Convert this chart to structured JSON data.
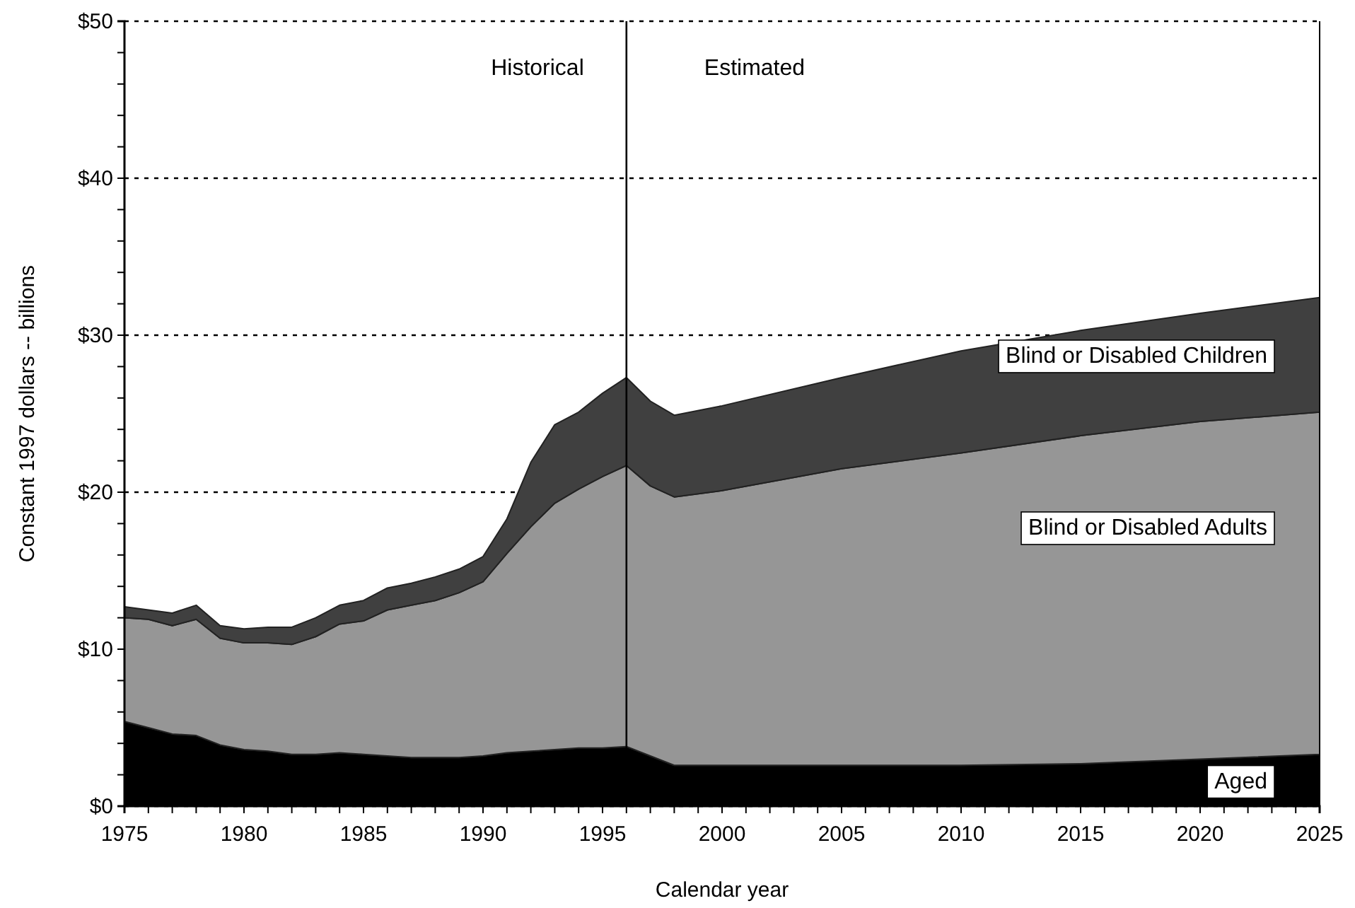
{
  "chart_data": {
    "type": "area",
    "stacked": true,
    "xlabel": "Calendar year",
    "ylabel": "Constant 1997 dollars -- billions",
    "x": [
      1975,
      1976,
      1977,
      1978,
      1979,
      1980,
      1981,
      1982,
      1983,
      1984,
      1985,
      1986,
      1987,
      1988,
      1989,
      1990,
      1991,
      1992,
      1993,
      1994,
      1995,
      1996,
      1997,
      1998,
      2000,
      2005,
      2010,
      2015,
      2020,
      2025
    ],
    "series": [
      {
        "name": "Aged",
        "color": "#000000",
        "values": [
          5.4,
          5.0,
          4.6,
          4.5,
          3.9,
          3.6,
          3.5,
          3.3,
          3.3,
          3.4,
          3.3,
          3.2,
          3.1,
          3.1,
          3.1,
          3.2,
          3.4,
          3.5,
          3.6,
          3.7,
          3.7,
          3.8,
          3.2,
          2.6,
          2.6,
          2.6,
          2.6,
          2.7,
          3.0,
          3.3
        ]
      },
      {
        "name": "Blind or Disabled Adults",
        "color": "#969696",
        "values": [
          6.6,
          6.9,
          6.9,
          7.4,
          6.8,
          6.8,
          6.9,
          7.0,
          7.5,
          8.2,
          8.5,
          9.3,
          9.7,
          10.0,
          10.5,
          11.1,
          12.7,
          14.3,
          15.7,
          16.5,
          17.3,
          17.9,
          17.2,
          17.1,
          17.5,
          18.9,
          19.9,
          20.9,
          21.5,
          21.8
        ]
      },
      {
        "name": "Blind or Disabled Children",
        "color": "#404040",
        "values": [
          0.7,
          0.6,
          0.8,
          0.9,
          0.8,
          0.9,
          1.0,
          1.1,
          1.2,
          1.2,
          1.3,
          1.4,
          1.4,
          1.5,
          1.5,
          1.6,
          2.2,
          4.1,
          5.0,
          4.9,
          5.3,
          5.6,
          5.4,
          5.2,
          5.4,
          5.8,
          6.5,
          6.7,
          6.9,
          7.3
        ]
      }
    ],
    "xlim": [
      1975,
      2025
    ],
    "xticks": [
      1975,
      {
        "value": 1976,
        "label": null
      },
      {
        "value": 1977,
        "label": null
      },
      {
        "value": 1978,
        "label": null
      },
      {
        "value": 1979,
        "label": null
      },
      1980,
      {
        "value": 1981,
        "label": null
      },
      {
        "value": 1982,
        "label": null
      },
      {
        "value": 1983,
        "label": null
      },
      {
        "value": 1984,
        "label": null
      },
      1985,
      {
        "value": 1986,
        "label": null
      },
      {
        "value": 1987,
        "label": null
      },
      {
        "value": 1988,
        "label": null
      },
      {
        "value": 1989,
        "label": null
      },
      1990,
      {
        "value": 1991,
        "label": null
      },
      {
        "value": 1992,
        "label": null
      },
      {
        "value": 1993,
        "label": null
      },
      {
        "value": 1994,
        "label": null
      },
      1995,
      {
        "value": 1996,
        "label": null
      },
      {
        "value": 1997,
        "label": null
      },
      {
        "value": 1998,
        "label": null
      },
      {
        "value": 1999,
        "label": null
      },
      2000,
      {
        "value": 2001,
        "label": null
      },
      {
        "value": 2002,
        "label": null
      },
      {
        "value": 2003,
        "label": null
      },
      {
        "value": 2004,
        "label": null
      },
      2005,
      {
        "value": 2006,
        "label": null
      },
      {
        "value": 2007,
        "label": null
      },
      {
        "value": 2008,
        "label": null
      },
      {
        "value": 2009,
        "label": null
      },
      2010,
      {
        "value": 2011,
        "label": null
      },
      {
        "value": 2012,
        "label": null
      },
      {
        "value": 2013,
        "label": null
      },
      {
        "value": 2014,
        "label": null
      },
      2015,
      {
        "value": 2016,
        "label": null
      },
      {
        "value": 2017,
        "label": null
      },
      {
        "value": 2018,
        "label": null
      },
      {
        "value": 2019,
        "label": null
      },
      2020,
      {
        "value": 2021,
        "label": null
      },
      {
        "value": 2022,
        "label": null
      },
      {
        "value": 2023,
        "label": null
      },
      {
        "value": 2024,
        "label": null
      },
      2025
    ],
    "ylim": [
      0,
      50
    ],
    "yticks": [
      {
        "value": 0,
        "label": "$0"
      },
      {
        "value": 2,
        "label": null
      },
      {
        "value": 4,
        "label": null
      },
      {
        "value": 6,
        "label": null
      },
      {
        "value": 8,
        "label": null
      },
      {
        "value": 10,
        "label": "$10"
      },
      {
        "value": 12,
        "label": null
      },
      {
        "value": 14,
        "label": null
      },
      {
        "value": 16,
        "label": null
      },
      {
        "value": 18,
        "label": null
      },
      {
        "value": 20,
        "label": "$20"
      },
      {
        "value": 22,
        "label": null
      },
      {
        "value": 24,
        "label": null
      },
      {
        "value": 26,
        "label": null
      },
      {
        "value": 28,
        "label": null
      },
      {
        "value": 30,
        "label": "$30"
      },
      {
        "value": 32,
        "label": null
      },
      {
        "value": 34,
        "label": null
      },
      {
        "value": 36,
        "label": null
      },
      {
        "value": 38,
        "label": null
      },
      {
        "value": 40,
        "label": "$40"
      },
      {
        "value": 42,
        "label": null
      },
      {
        "value": 44,
        "label": null
      },
      {
        "value": 46,
        "label": null
      },
      {
        "value": 48,
        "label": null
      },
      {
        "value": 50,
        "label": "$50"
      }
    ],
    "grid": "y",
    "legend": false,
    "line_style": "solid",
    "ref_lines": [
      {
        "axis": "x",
        "value": 1996,
        "color": "#000000"
      }
    ],
    "annotations": [
      "Historical",
      "Estimated"
    ]
  }
}
